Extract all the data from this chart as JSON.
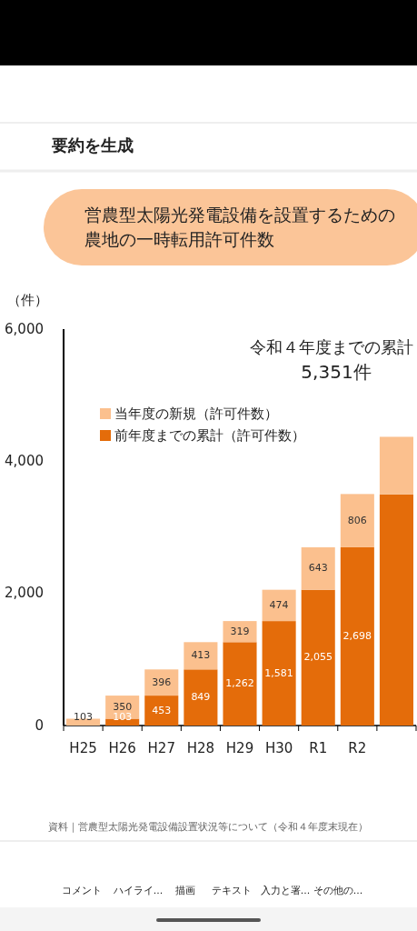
{
  "chart_data": {
    "type": "bar",
    "stacked": true,
    "title": "営農型太陽光発電設備を設置するための農地の一時転用許可件数",
    "ylabel": "（件）",
    "categories": [
      "H25",
      "H26",
      "H27",
      "H28",
      "H29",
      "H30",
      "R1",
      "R2",
      null
    ],
    "series": [
      {
        "name": "前年度までの累計（許可件数）",
        "color": "#e46c0a",
        "values": [
          0,
          103,
          453,
          849,
          1262,
          1581,
          2055,
          2698,
          3500
        ],
        "value_labels": [
          null,
          "103",
          "453",
          "849",
          "1,262",
          "1,581",
          "2,055",
          "2,698",
          null
        ]
      },
      {
        "name": "当年度の新規（許可件数）",
        "color": "#fbc08e",
        "values": [
          103,
          350,
          396,
          413,
          319,
          474,
          643,
          806,
          870
        ],
        "value_labels": [
          "103",
          "350",
          "396",
          "413",
          "319",
          "474",
          "643",
          "806",
          null
        ]
      }
    ],
    "ylim": [
      0,
      6000
    ],
    "yticks": [
      0,
      {
        "value": 2000,
        "label": "2,000"
      },
      {
        "value": 4000,
        "label": "4,000"
      },
      {
        "value": 6000,
        "label": "6,000"
      }
    ],
    "legend": "top left",
    "grid": false,
    "annotations": [
      "令和４年度までの累計",
      "5,351件",
      "資料｜営農型太陽光発電設備設置状況等について（令和４年度末現在）",
      "要約を生成",
      "コメント",
      "ハイライ...",
      "描画",
      "テキスト",
      "入力と署...",
      "その他の..."
    ]
  }
}
